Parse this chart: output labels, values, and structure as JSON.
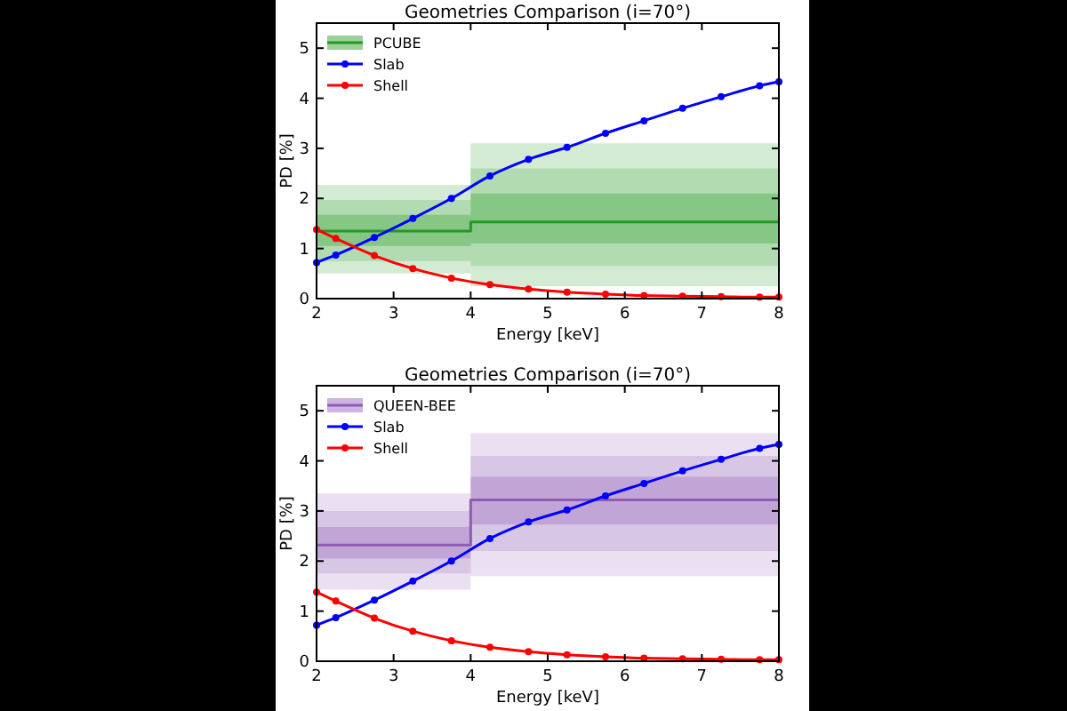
{
  "chart_data": [
    {
      "type": "line",
      "title": "Geometries Comparison (i=70°)",
      "xlabel": "Energy [keV]",
      "ylabel": "PD [%]",
      "xlim": [
        2,
        8
      ],
      "ylim": [
        0,
        5.5
      ],
      "xticks": [
        2,
        3,
        4,
        5,
        6,
        7,
        8
      ],
      "yticks": [
        0,
        1,
        2,
        3,
        4,
        5
      ],
      "grid": false,
      "legend": "top left",
      "marker": "circle",
      "series": [
        {
          "type": "step",
          "color": "#d3ebd3",
          "x": [
            2,
            4,
            8
          ],
          "values": [
            null,
            null,
            null
          ],
          "lower": [
            0.5,
            0.25,
            0.25
          ],
          "upper": [
            2.27,
            3.1,
            3.1
          ]
        },
        {
          "type": "step",
          "color": "#b2dbb2",
          "x": [
            2,
            4,
            8
          ],
          "values": [
            null,
            null,
            null
          ],
          "lower": [
            0.75,
            0.65,
            0.65
          ],
          "upper": [
            1.97,
            2.6,
            2.6
          ]
        },
        {
          "type": "step",
          "name": "PCUBE",
          "color": "#229922",
          "marker": "none",
          "x": [
            2,
            4,
            8
          ],
          "values": [
            1.35,
            1.53,
            1.53
          ],
          "lower": [
            1.05,
            1.1,
            1.1
          ],
          "upper": [
            1.67,
            2.1,
            2.1
          ]
        },
        {
          "type": "line",
          "name": "Slab",
          "color": "#0000ff",
          "x": [
            2,
            2.25,
            2.75,
            3.25,
            3.75,
            4.25,
            4.75,
            5.25,
            5.75,
            6.25,
            6.75,
            7.25,
            7.75,
            8
          ],
          "values": [
            0.72,
            0.87,
            1.22,
            1.6,
            2.0,
            2.45,
            2.78,
            3.02,
            3.3,
            3.55,
            3.8,
            4.03,
            4.25,
            4.33
          ]
        },
        {
          "type": "line",
          "name": "Shell",
          "color": "#ff0000",
          "x": [
            2,
            2.25,
            2.75,
            3.25,
            3.75,
            4.25,
            4.75,
            5.25,
            5.75,
            6.25,
            6.75,
            7.25,
            7.75,
            8
          ],
          "values": [
            1.38,
            1.2,
            0.86,
            0.6,
            0.41,
            0.28,
            0.19,
            0.13,
            0.09,
            0.06,
            0.05,
            0.04,
            0.03,
            0.03
          ]
        }
      ]
    },
    {
      "type": "line",
      "title": "Geometries Comparison (i=70°)",
      "xlabel": "Energy [keV]",
      "ylabel": "PD [%]",
      "xlim": [
        2,
        8
      ],
      "ylim": [
        0,
        5.5
      ],
      "xticks": [
        2,
        3,
        4,
        5,
        6,
        7,
        8
      ],
      "yticks": [
        0,
        1,
        2,
        3,
        4,
        5
      ],
      "grid": false,
      "legend": "top left",
      "marker": "circle",
      "series": [
        {
          "type": "step",
          "color": "#ebe0f1",
          "x": [
            2,
            4,
            8
          ],
          "values": [
            null,
            null,
            null
          ],
          "lower": [
            1.43,
            1.7,
            1.7
          ],
          "upper": [
            3.35,
            4.55,
            4.55
          ]
        },
        {
          "type": "step",
          "color": "#d8c6e5",
          "x": [
            2,
            4,
            8
          ],
          "values": [
            null,
            null,
            null
          ],
          "lower": [
            1.75,
            2.2,
            2.2
          ],
          "upper": [
            3.0,
            4.1,
            4.1
          ]
        },
        {
          "type": "step",
          "name": "QUEEN-BEE",
          "color": "#8e5bb5",
          "marker": "none",
          "x": [
            2,
            4,
            8
          ],
          "values": [
            2.32,
            3.22,
            3.22
          ],
          "lower": [
            2.05,
            2.73,
            2.73
          ],
          "upper": [
            2.68,
            3.68,
            3.68
          ]
        },
        {
          "type": "line",
          "name": "Slab",
          "color": "#0000ff",
          "x": [
            2,
            2.25,
            2.75,
            3.25,
            3.75,
            4.25,
            4.75,
            5.25,
            5.75,
            6.25,
            6.75,
            7.25,
            7.75,
            8
          ],
          "values": [
            0.72,
            0.87,
            1.22,
            1.6,
            2.0,
            2.45,
            2.78,
            3.02,
            3.3,
            3.55,
            3.8,
            4.03,
            4.25,
            4.33
          ]
        },
        {
          "type": "line",
          "name": "Shell",
          "color": "#ff0000",
          "x": [
            2,
            2.25,
            2.75,
            3.25,
            3.75,
            4.25,
            4.75,
            5.25,
            5.75,
            6.25,
            6.75,
            7.25,
            7.75,
            8
          ],
          "values": [
            1.38,
            1.2,
            0.86,
            0.6,
            0.41,
            0.28,
            0.19,
            0.13,
            0.09,
            0.06,
            0.05,
            0.04,
            0.03,
            0.03
          ]
        }
      ]
    }
  ]
}
